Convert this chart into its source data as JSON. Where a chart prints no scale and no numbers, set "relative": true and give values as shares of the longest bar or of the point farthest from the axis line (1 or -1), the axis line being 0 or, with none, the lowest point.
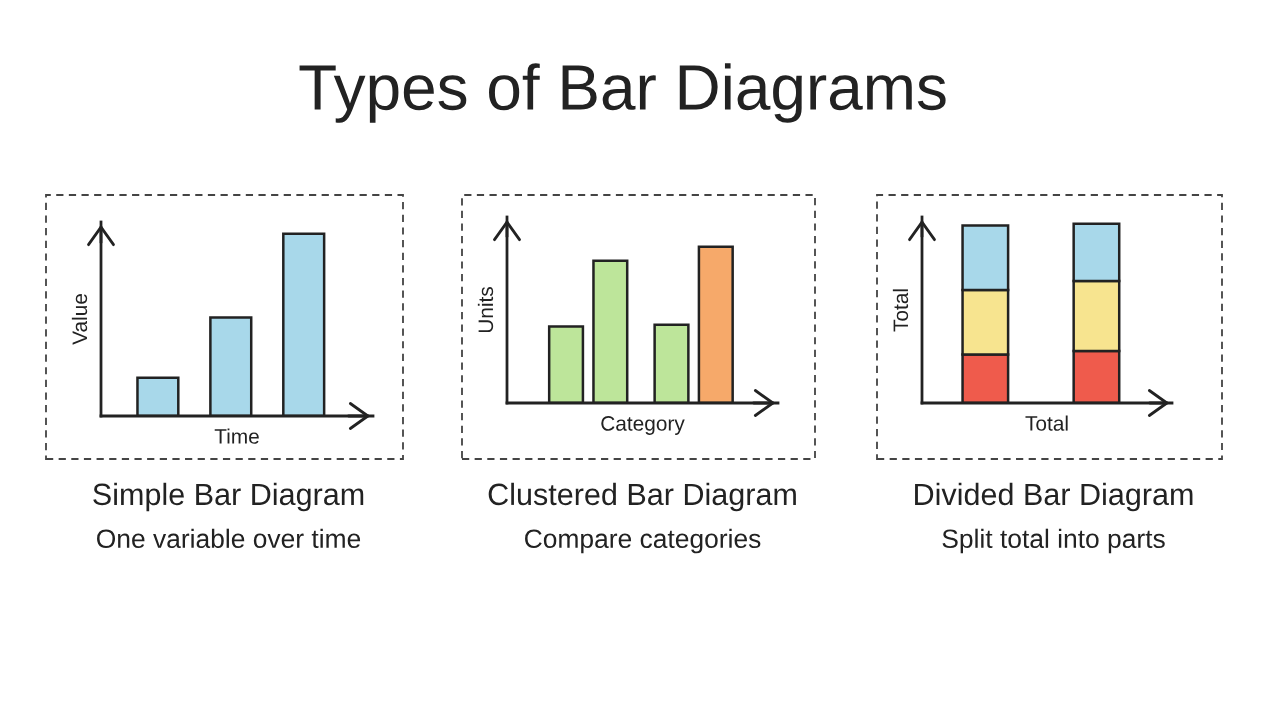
{
  "chart_data": [
    {
      "type": "other",
      "title": "Types of Bar Diagrams"
    },
    {
      "type": "bar",
      "title": "Simple Bar Diagram",
      "subtitle": "One variable over time",
      "xlabel": "Time",
      "ylabel": "Value",
      "categories": [
        null,
        null,
        null
      ],
      "values": [
        0.21,
        0.54,
        1
      ],
      "color": "#a8d8ea",
      "relative": true,
      "tick_labels": false
    },
    {
      "type": "bar",
      "title": "Clustered Bar Diagram",
      "subtitle": "Compare categories",
      "xlabel": "Category",
      "ylabel": "Units",
      "categories": [
        null,
        null
      ],
      "series": [
        {
          "colors": [
            "#bde59a",
            "#bde59a"
          ],
          "values": [
            0.49,
            0.5
          ]
        },
        {
          "colors": [
            "#bde59a",
            "#f6a96a"
          ],
          "values": [
            0.91,
            1
          ]
        }
      ],
      "relative": true,
      "tick_labels": false
    },
    {
      "type": "bar",
      "stacked": true,
      "title": "Divided Bar Diagram",
      "subtitle": "Split total into parts",
      "xlabel": "Total",
      "ylabel": "Total",
      "categories": [
        null,
        null
      ],
      "series": [
        {
          "color": "#ef5b4c",
          "values": [
            0.27,
            0.29
          ]
        },
        {
          "color": "#f7e48f",
          "values": [
            0.36,
            0.39
          ]
        },
        {
          "color": "#a8d8ea",
          "values": [
            0.36,
            0.32
          ]
        }
      ],
      "relative": true,
      "tick_labels": false
    }
  ]
}
